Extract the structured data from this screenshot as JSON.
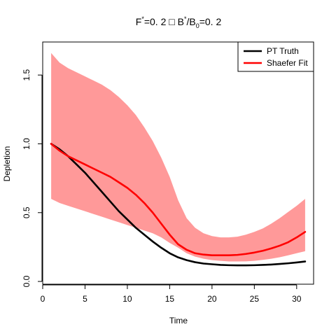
{
  "chart_data": {
    "type": "line",
    "title": {
      "parts": [
        {
          "text": "F",
          "style": "normal"
        },
        {
          "text": "*",
          "style": "sup"
        },
        {
          "text": "=0. 2 □ B",
          "style": "normal"
        },
        {
          "text": "*",
          "style": "sup"
        },
        {
          "text": "/B",
          "style": "normal"
        },
        {
          "text": "0",
          "style": "sub"
        },
        {
          "text": "=0. 2",
          "style": "normal"
        }
      ]
    },
    "xlabel": "Time",
    "ylabel": "Depletion",
    "xlim": [
      0,
      32
    ],
    "ylim": [
      -0.02,
      1.74
    ],
    "x_ticks": [
      0,
      5,
      10,
      15,
      20,
      25,
      30
    ],
    "y_ticks": [
      0.0,
      0.5,
      1.0,
      1.5
    ],
    "y_tick_labels": [
      "0.0",
      "0.5",
      "1.0",
      "1.5"
    ],
    "legend": {
      "position": "top-right",
      "entries": [
        {
          "name": "PT Truth",
          "color": "#000000"
        },
        {
          "name": "Shaefer Fit",
          "color": "#ff0000"
        }
      ]
    },
    "x": [
      1,
      2,
      3,
      4,
      5,
      6,
      7,
      8,
      9,
      10,
      11,
      12,
      13,
      14,
      15,
      16,
      17,
      18,
      19,
      20,
      21,
      22,
      23,
      24,
      25,
      26,
      27,
      28,
      29,
      30,
      31
    ],
    "series": [
      {
        "name": "PT Truth",
        "color": "#000000",
        "values": [
          1.0,
          0.96,
          0.91,
          0.85,
          0.79,
          0.72,
          0.65,
          0.58,
          0.51,
          0.45,
          0.39,
          0.34,
          0.29,
          0.245,
          0.205,
          0.175,
          0.155,
          0.14,
          0.13,
          0.125,
          0.12,
          0.118,
          0.117,
          0.117,
          0.118,
          0.12,
          0.123,
          0.127,
          0.132,
          0.138,
          0.145
        ]
      },
      {
        "name": "Shaefer Fit",
        "color": "#ff0000",
        "values": [
          1.0,
          0.95,
          0.91,
          0.88,
          0.85,
          0.82,
          0.79,
          0.76,
          0.72,
          0.68,
          0.63,
          0.57,
          0.5,
          0.42,
          0.34,
          0.27,
          0.23,
          0.205,
          0.195,
          0.19,
          0.19,
          0.19,
          0.193,
          0.2,
          0.21,
          0.223,
          0.24,
          0.26,
          0.285,
          0.32,
          0.36
        ]
      }
    ],
    "band": {
      "color": "#ff9999",
      "lower": [
        0.6,
        0.57,
        0.55,
        0.53,
        0.51,
        0.49,
        0.47,
        0.45,
        0.43,
        0.41,
        0.39,
        0.37,
        0.35,
        0.32,
        0.28,
        0.245,
        0.205,
        0.18,
        0.165,
        0.155,
        0.15,
        0.145,
        0.145,
        0.146,
        0.15,
        0.157,
        0.165,
        0.176,
        0.19,
        0.205,
        0.22
      ],
      "upper": [
        1.66,
        1.59,
        1.55,
        1.52,
        1.49,
        1.46,
        1.43,
        1.39,
        1.34,
        1.28,
        1.21,
        1.12,
        1.02,
        0.9,
        0.76,
        0.59,
        0.46,
        0.39,
        0.35,
        0.33,
        0.32,
        0.32,
        0.325,
        0.34,
        0.36,
        0.385,
        0.42,
        0.46,
        0.505,
        0.55,
        0.6
      ]
    }
  }
}
